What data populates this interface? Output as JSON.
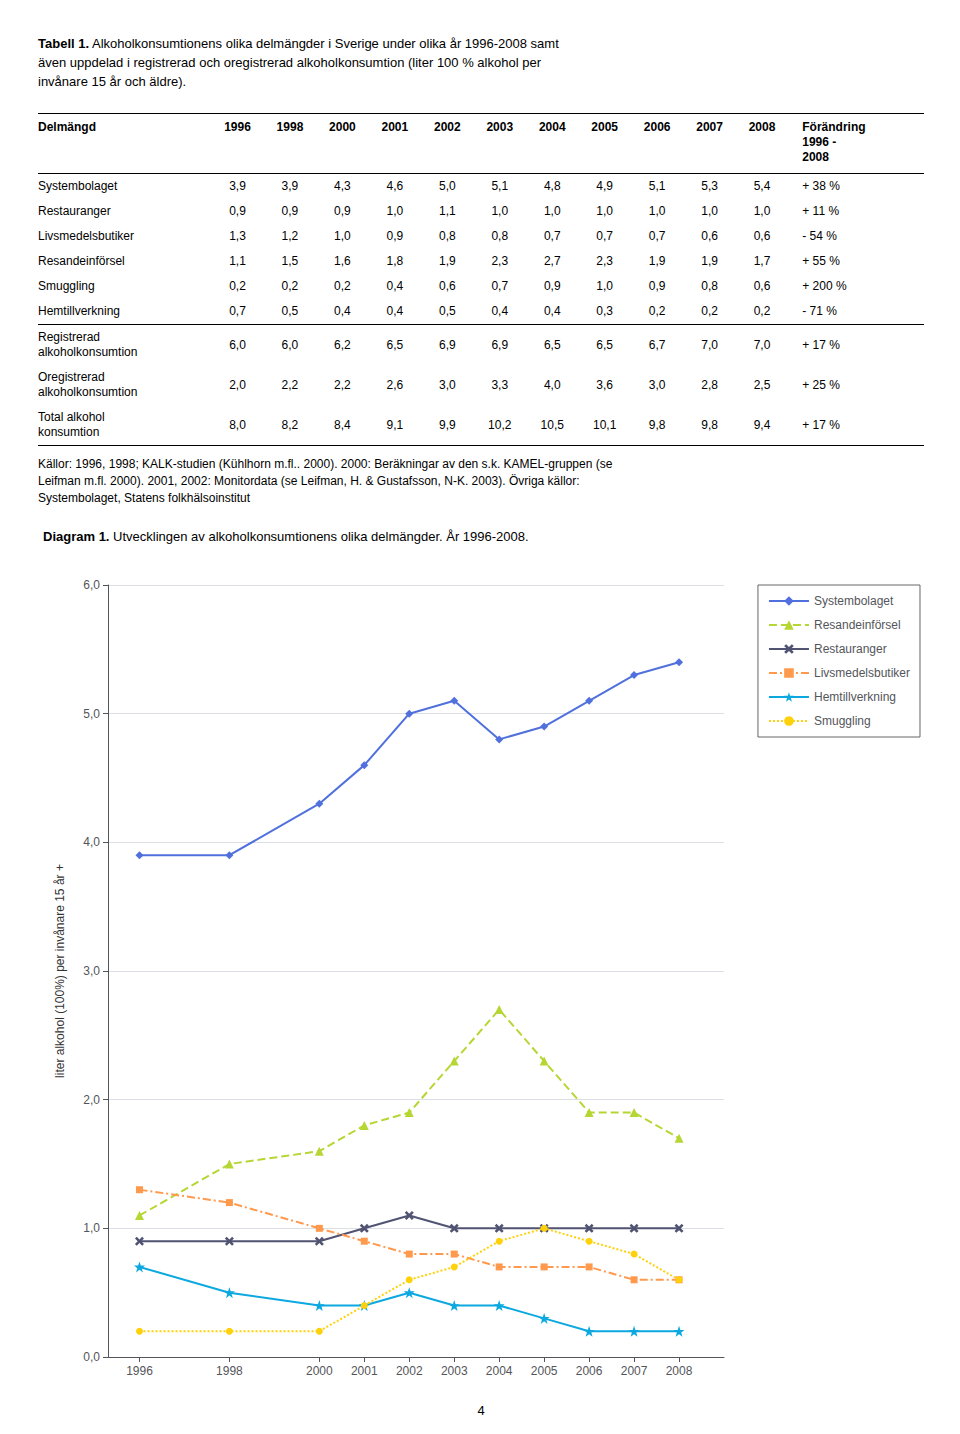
{
  "table": {
    "label": "Tabell 1.",
    "title": [
      "Alkoholkonsumtionens olika delmängder i Sverige under olika år 1996-2008 samt",
      "även uppdelad i registrerad och oregistrerad alkoholkonsumtion (liter 100 % alkohol per",
      "invånare 15 år och äldre)."
    ],
    "columns": [
      "Delmängd",
      "1996",
      "1998",
      "2000",
      "2001",
      "2002",
      "2003",
      "2004",
      "2005",
      "2006",
      "2007",
      "2008",
      "Förändring\n1996 -\n2008"
    ],
    "rows": [
      [
        "Systembolaget",
        "3,9",
        "3,9",
        "4,3",
        "4,6",
        "5,0",
        "5,1",
        "4,8",
        "4,9",
        "5,1",
        "5,3",
        "5,4",
        "+ 38 %"
      ],
      [
        "Restauranger",
        "0,9",
        "0,9",
        "0,9",
        "1,0",
        "1,1",
        "1,0",
        "1,0",
        "1,0",
        "1,0",
        "1,0",
        "1,0",
        "+ 11 %"
      ],
      [
        "Livsmedelsbutiker",
        "1,3",
        "1,2",
        "1,0",
        "0,9",
        "0,8",
        "0,8",
        "0,7",
        "0,7",
        "0,7",
        "0,6",
        "0,6",
        "- 54 %"
      ],
      [
        "Resandeinförsel",
        "1,1",
        "1,5",
        "1,6",
        "1,8",
        "1,9",
        "2,3",
        "2,7",
        "2,3",
        "1,9",
        "1,9",
        "1,7",
        "+ 55 %"
      ],
      [
        "Smuggling",
        "0,2",
        "0,2",
        "0,2",
        "0,4",
        "0,6",
        "0,7",
        "0,9",
        "1,0",
        "0,9",
        "0,8",
        "0,6",
        "+ 200 %"
      ],
      [
        "Hemtillverkning",
        "0,7",
        "0,5",
        "0,4",
        "0,4",
        "0,5",
        "0,4",
        "0,4",
        "0,3",
        "0,2",
        "0,2",
        "0,2",
        "- 71 %"
      ]
    ],
    "total_rows": [
      [
        "Registrerad\nalkoholkonsumtion",
        "6,0",
        "6,0",
        "6,2",
        "6,5",
        "6,9",
        "6,9",
        "6,5",
        "6,5",
        "6,7",
        "7,0",
        "7,0",
        "+ 17 %"
      ],
      [
        "Oregistrerad\nalkoholkonsumtion",
        "2,0",
        "2,2",
        "2,2",
        "2,6",
        "3,0",
        "3,3",
        "4,0",
        "3,6",
        "3,0",
        "2,8",
        "2,5",
        "+ 25 %"
      ],
      [
        "Total alkohol\nkonsumtion",
        "8,0",
        "8,2",
        "8,4",
        "9,1",
        "9,9",
        "10,2",
        "10,5",
        "10,1",
        "9,8",
        "9,8",
        "9,4",
        "+ 17 %"
      ]
    ],
    "sources": [
      "Källor: 1996, 1998; KALK-studien (Kühlhorn m.fl.. 2000). 2000: Beräkningar av den s.k. KAMEL-gruppen (se",
      "Leifman m.fl. 2000). 2001, 2002: Monitordata (se Leifman, H. & Gustafsson, N-K. 2003). Övriga källor:",
      "Systembolaget, Statens folkhälsoinstitut"
    ]
  },
  "chart_data": {
    "type": "line",
    "label": "Diagram 1.",
    "title": "Utvecklingen av alkoholkonsumtionens olika delmängder. År 1996-2008.",
    "y_label": "liter alkohol (100%) per invånare 15 år +",
    "x": [
      1996,
      1998,
      2000,
      2001,
      2002,
      2003,
      2004,
      2005,
      2006,
      2007,
      2008
    ],
    "series": [
      {
        "name": "Systembolaget",
        "marker": "diamond",
        "line_style": "solid",
        "values": [
          3.9,
          3.9,
          4.3,
          4.6,
          5.0,
          5.1,
          4.8,
          4.9,
          5.1,
          5.3,
          5.4
        ]
      },
      {
        "name": "Resandeinförsel",
        "marker": "triangle",
        "line_style": "dashed",
        "values": [
          1.1,
          1.5,
          1.6,
          1.8,
          1.9,
          2.3,
          2.7,
          2.3,
          1.9,
          1.9,
          1.7
        ]
      },
      {
        "name": "Restauranger",
        "marker": "x",
        "line_style": "solid",
        "values": [
          0.9,
          0.9,
          0.9,
          1.0,
          1.1,
          1.0,
          1.0,
          1.0,
          1.0,
          1.0,
          1.0
        ]
      },
      {
        "name": "Livsmedelsbutiker",
        "marker": "square",
        "line_style": "dashdot",
        "values": [
          1.3,
          1.2,
          1.0,
          0.9,
          0.8,
          0.8,
          0.7,
          0.7,
          0.7,
          0.6,
          0.6
        ]
      },
      {
        "name": "Hemtillverkning",
        "marker": "star",
        "line_style": "solid",
        "values": [
          0.7,
          0.5,
          0.4,
          0.4,
          0.5,
          0.4,
          0.4,
          0.3,
          0.2,
          0.2,
          0.2
        ]
      },
      {
        "name": "Smuggling",
        "marker": "circle",
        "line_style": "dotted",
        "values": [
          0.2,
          0.2,
          0.2,
          0.4,
          0.6,
          0.7,
          0.9,
          1.0,
          0.9,
          0.8,
          0.6
        ]
      }
    ],
    "xlim": [
      1995.3,
      2009.0
    ],
    "xticks": [
      1996,
      1998,
      2000,
      2001,
      2002,
      2003,
      2004,
      2005,
      2006,
      2007,
      2008
    ],
    "ylim": [
      0.0,
      6.0
    ],
    "yticks": [
      {
        "value": 0.0,
        "label": "0,0"
      },
      {
        "value": 1.0,
        "label": "1,0"
      },
      {
        "value": 2.0,
        "label": "2,0"
      },
      {
        "value": 3.0,
        "label": "3,0"
      },
      {
        "value": 4.0,
        "label": "4,0"
      },
      {
        "value": 5.0,
        "label": "5,0"
      },
      {
        "value": 6.0,
        "label": "6,0"
      }
    ],
    "grid": true,
    "legend": "right"
  },
  "page_number": "4"
}
